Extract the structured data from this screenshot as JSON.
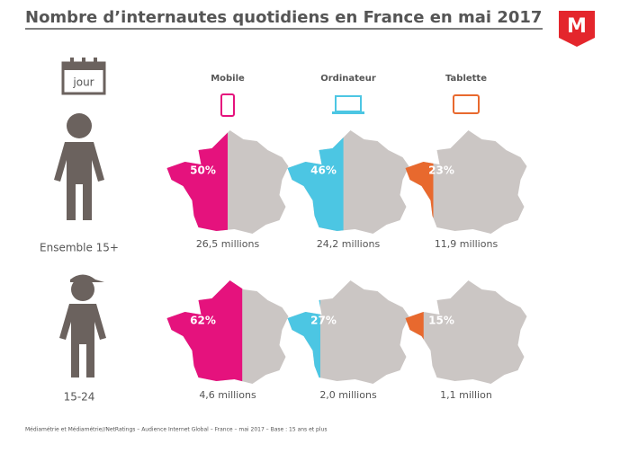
{
  "chart_data": {
    "type": "map-share",
    "title": "Nombre d’internautes quotidiens en France en mai 2017",
    "logo": "M",
    "calendar_label": "jour",
    "groups": [
      "Ensemble 15+",
      "15-24"
    ],
    "series": [
      {
        "name": "Mobile",
        "color": "#e5127d",
        "values": [
          50,
          62
        ],
        "value_labels": [
          "50%",
          "62%"
        ],
        "audience_labels": [
          "26,5 millions",
          "4,6 millions"
        ]
      },
      {
        "name": "Ordinateur",
        "color": "#4cc6e3",
        "values": [
          46,
          27
        ],
        "value_labels": [
          "46%",
          "27%"
        ],
        "audience_labels": [
          "24,2 millions",
          "2,0 millions"
        ]
      },
      {
        "name": "Tablette",
        "color": "#e8692e",
        "values": [
          23,
          15
        ],
        "value_labels": [
          "23%",
          "15%"
        ],
        "audience_labels": [
          "11,9 millions",
          "1,1 million"
        ]
      }
    ],
    "footnote": "Médiamétrie et Médiamétrie//NetRatings – Audience Internet Global – France – mai 2017 – Base : 15 ans et plus"
  }
}
